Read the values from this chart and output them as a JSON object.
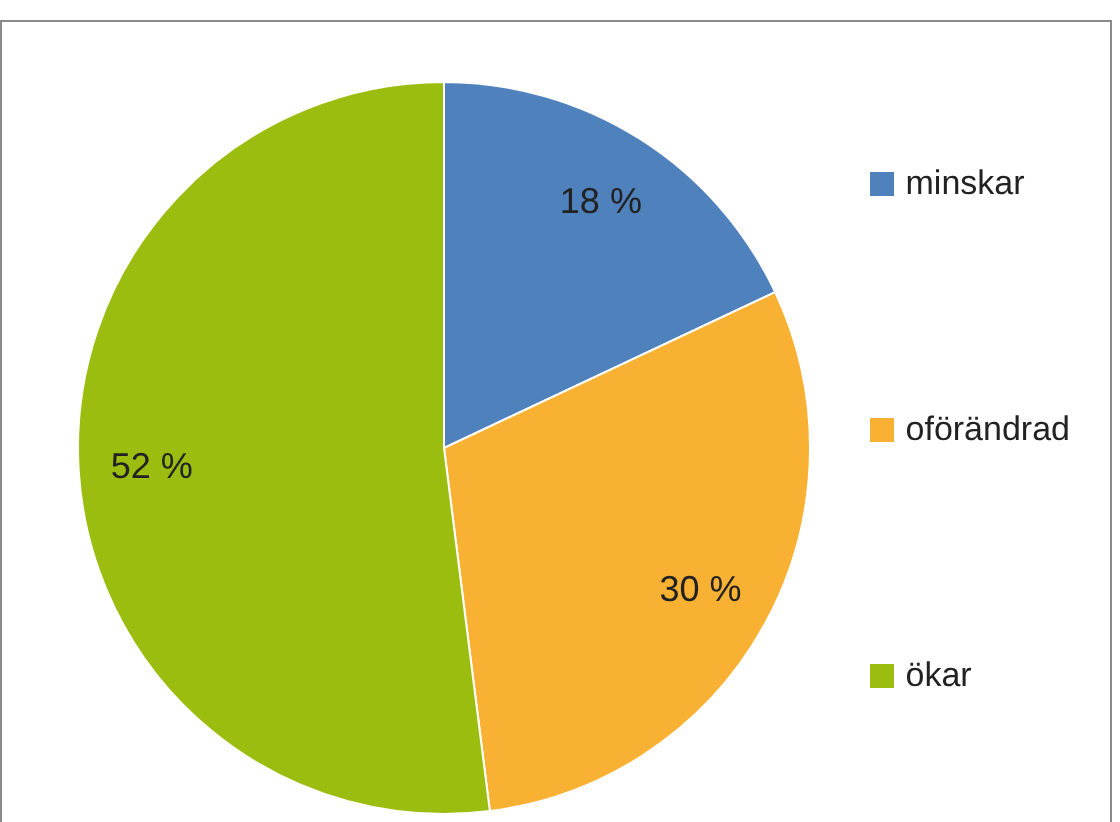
{
  "chart_data": {
    "type": "pie",
    "categories": [
      "minskar",
      "oförändrad",
      "ökar"
    ],
    "values": [
      18,
      30,
      52
    ],
    "colors": [
      "#4f81bd",
      "#f8b133",
      "#9bbd10"
    ],
    "value_labels": [
      "18 %",
      "30 %",
      "52 %"
    ],
    "legend": "right"
  }
}
